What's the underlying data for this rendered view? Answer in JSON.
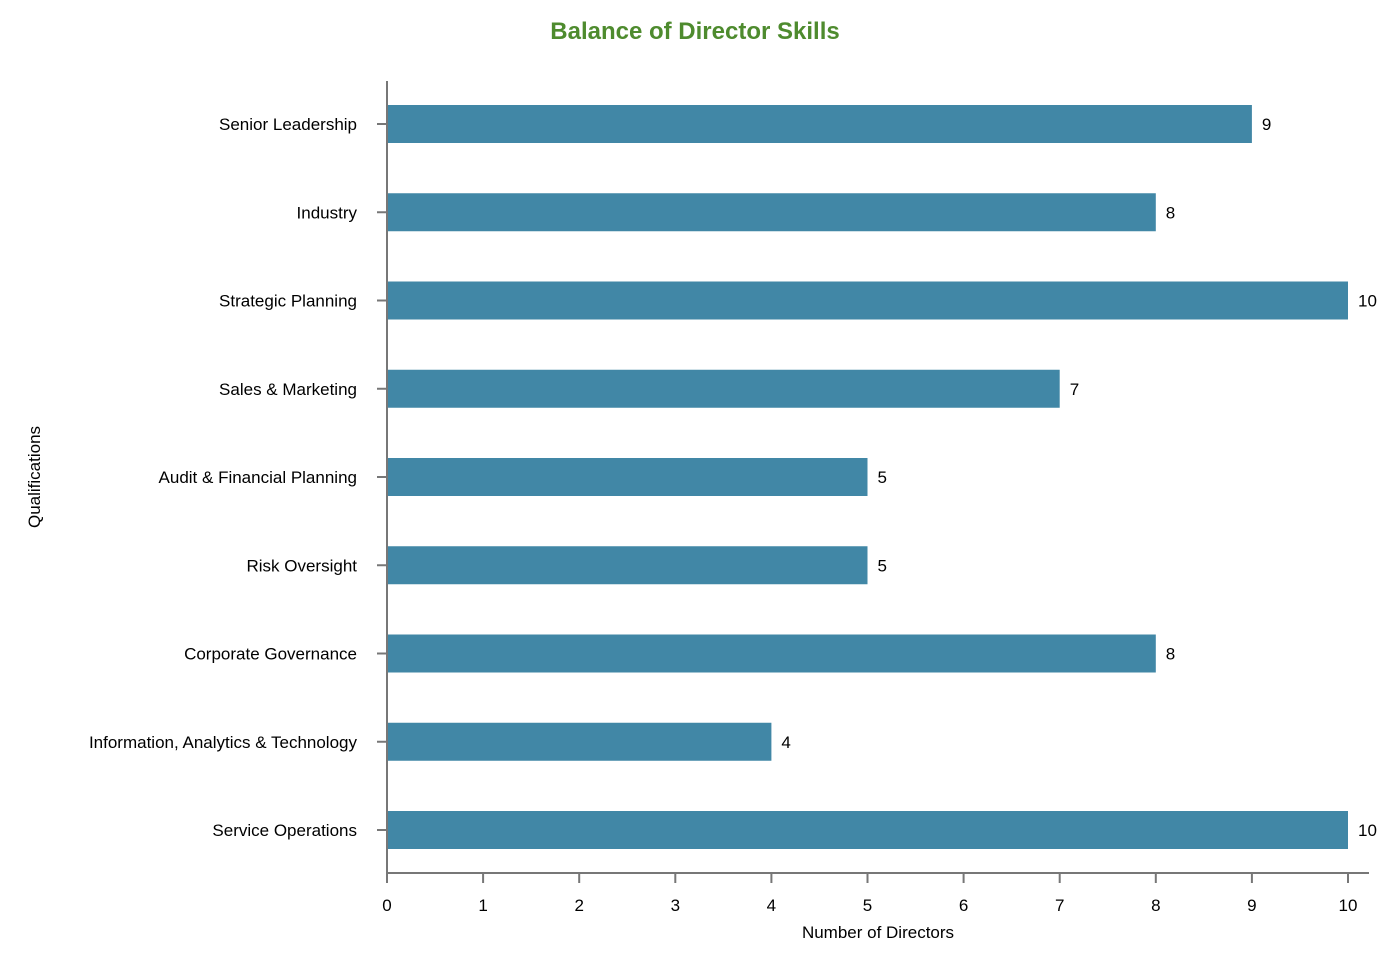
{
  "chart_data": {
    "type": "bar",
    "orientation": "horizontal",
    "title": "Balance of Director Skills",
    "xlabel": "Number of Directors",
    "ylabel": "Qualifications",
    "categories": [
      "Senior Leadership",
      "Industry",
      "Strategic Planning",
      "Sales & Marketing",
      "Audit & Financial Planning",
      "Risk Oversight",
      "Corporate Governance",
      "Information, Analytics & Technology",
      "Service Operations"
    ],
    "values": [
      9,
      8,
      10,
      7,
      5,
      5,
      8,
      4,
      10
    ],
    "xlim": [
      0,
      10
    ],
    "xticks": [
      0,
      1,
      2,
      3,
      4,
      5,
      6,
      7,
      8,
      9,
      10
    ],
    "grid": false,
    "data_labels": true,
    "colors": {
      "bar": "#4187a6",
      "title": "#4e8b2e",
      "axis": "#777777"
    }
  }
}
